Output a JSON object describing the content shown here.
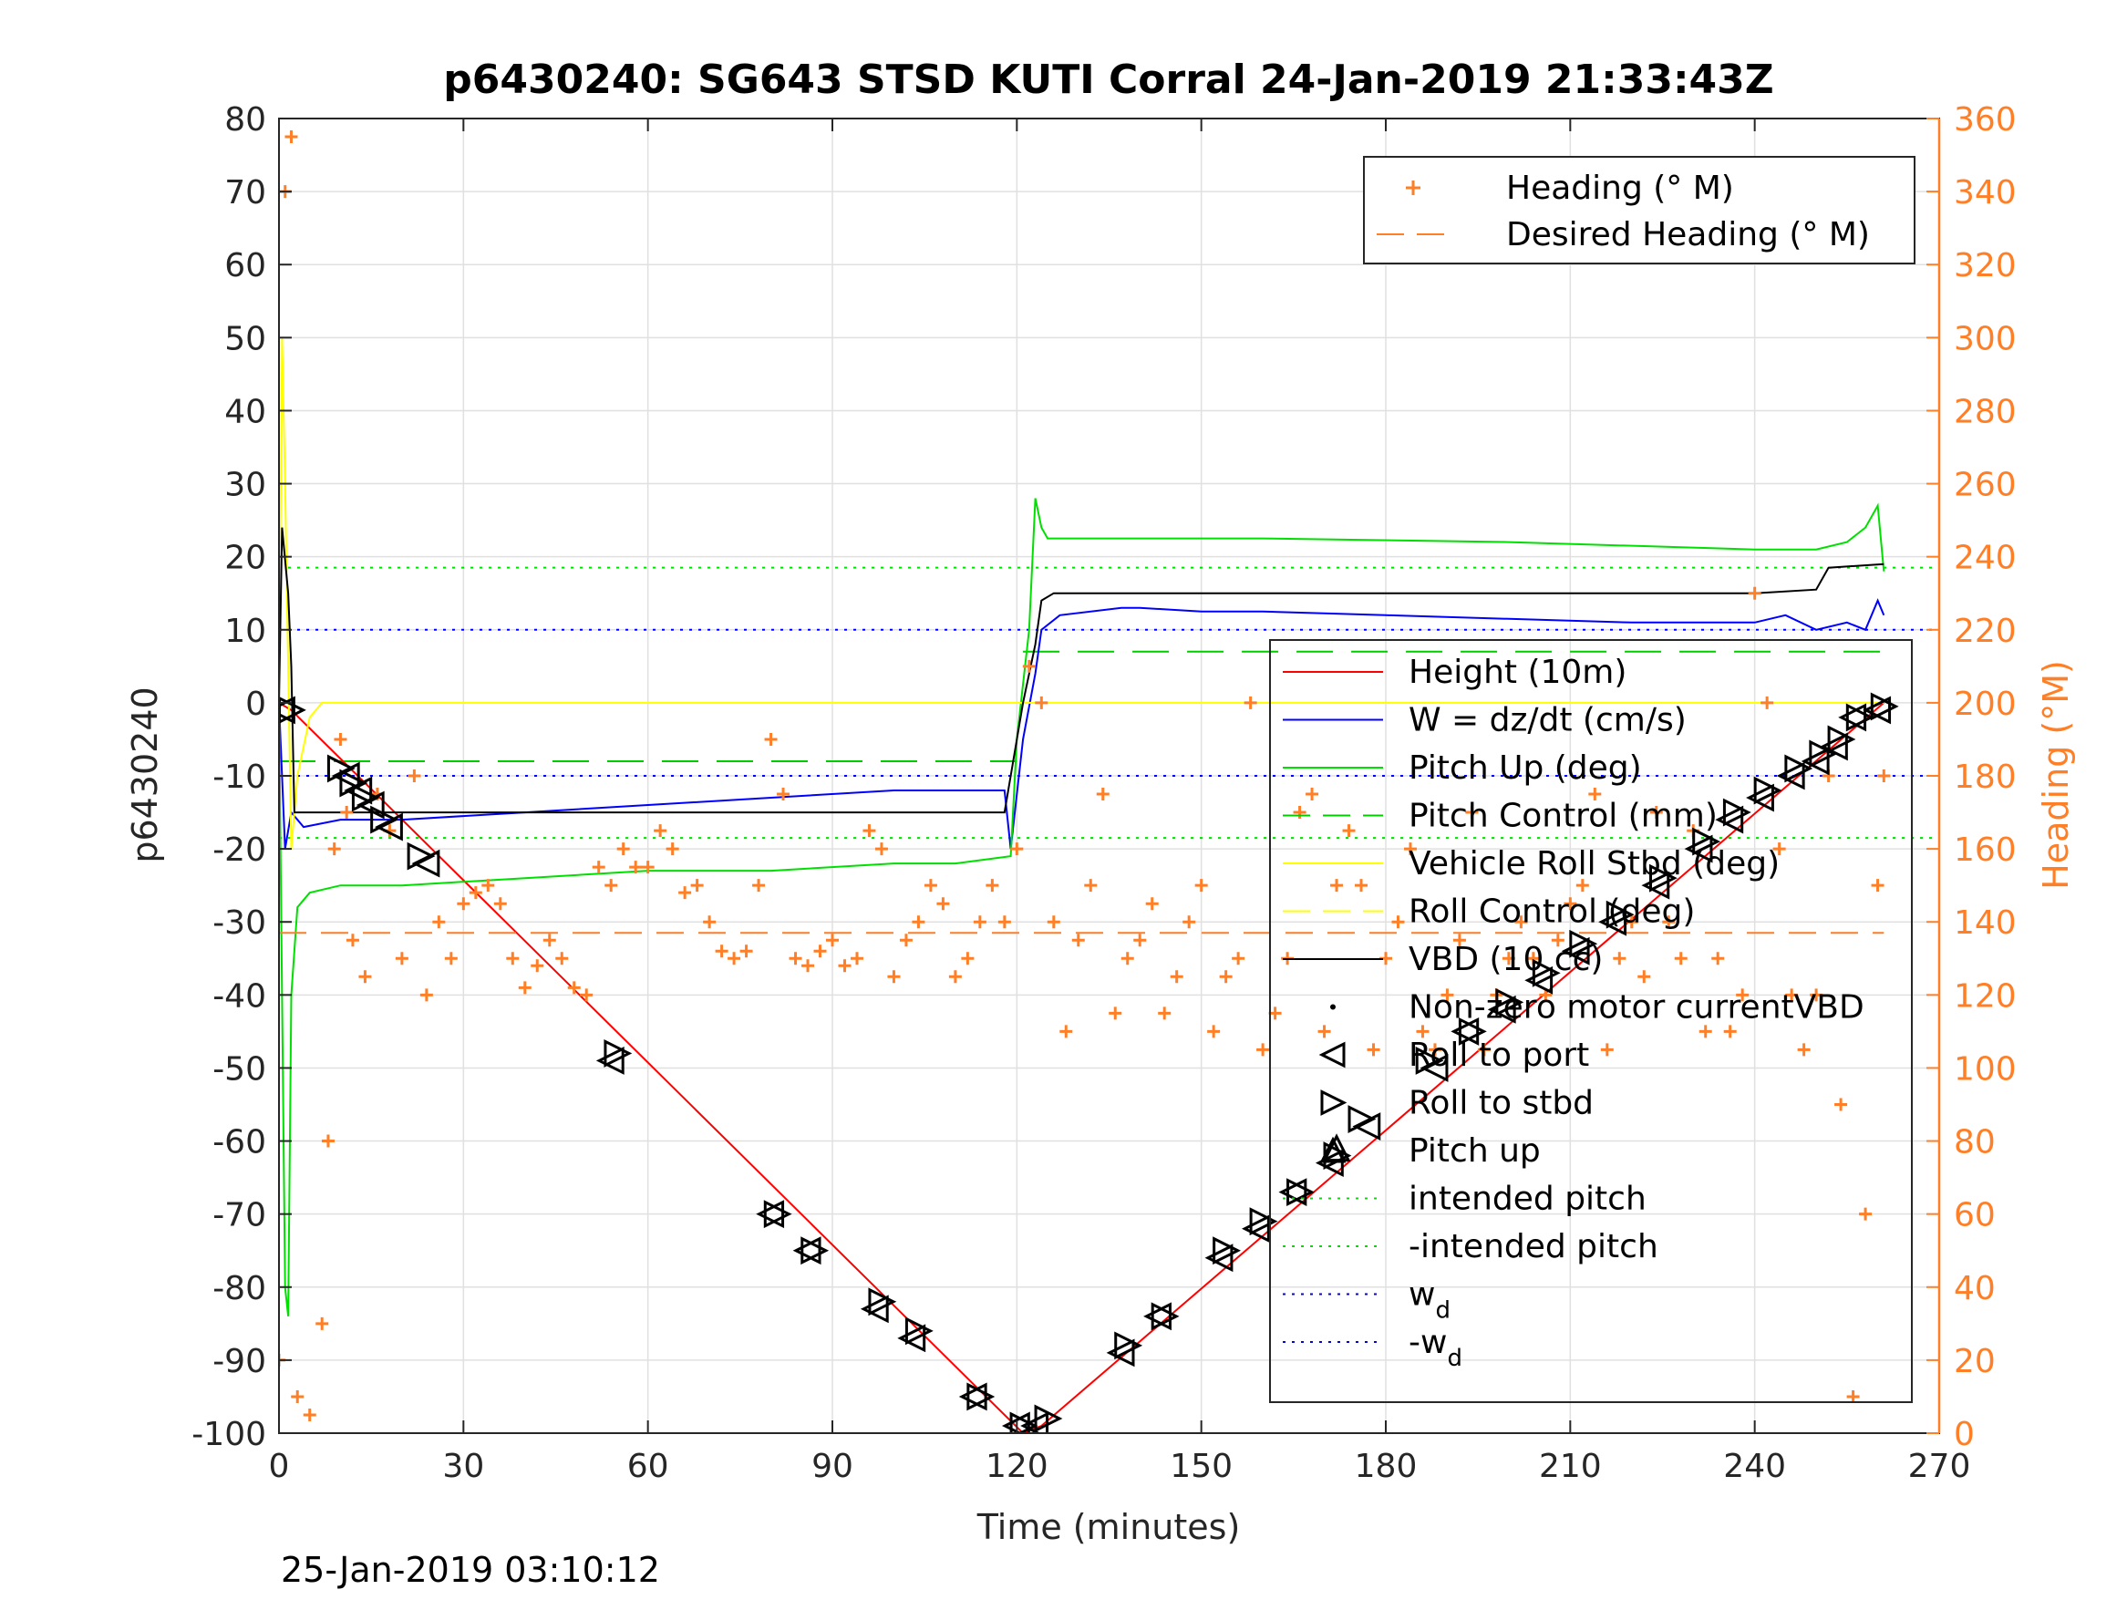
{
  "chart_data": {
    "type": "line",
    "title": "p6430240: SG643 STSD KUTI Corral 24-Jan-2019 21:33:43Z",
    "xlabel": "Time (minutes)",
    "ylabel_left": "p6430240",
    "ylabel_right": "Heading (°M)",
    "footer": "25-Jan-2019 03:10:12",
    "xlim": [
      0,
      270
    ],
    "xticks": [
      0,
      30,
      60,
      90,
      120,
      150,
      180,
      210,
      240,
      270
    ],
    "ylim_left": [
      -100,
      80
    ],
    "yticks_left": [
      80,
      70,
      60,
      50,
      40,
      30,
      20,
      10,
      0,
      -10,
      -20,
      -30,
      -40,
      -50,
      -60,
      -70,
      -80,
      -90,
      -100
    ],
    "ylim_right": [
      0,
      360
    ],
    "yticks_right": [
      360,
      340,
      320,
      300,
      280,
      260,
      240,
      220,
      200,
      180,
      160,
      140,
      120,
      100,
      80,
      60,
      40,
      20,
      0
    ],
    "grid": true,
    "colors": {
      "height": "#ff0000",
      "w": "#0000ff",
      "pitch": "#00e000",
      "pitch_control": "#00cc00",
      "roll": "#ffff00",
      "vbd": "#000000",
      "heading": "#ff7f27",
      "wd": "#0000ff",
      "right_axis": "#ff7f27"
    },
    "legend_top": {
      "placement": "top-right",
      "entries": [
        {
          "label": "Heading (° M)",
          "style": "plus",
          "color": "#ff7f27"
        },
        {
          "label": "Desired Heading (° M)",
          "style": "dash",
          "color": "#ff7f27"
        }
      ]
    },
    "legend_main": {
      "placement": "right",
      "entries": [
        {
          "label": "Height (10m)",
          "style": "line",
          "color": "#ff0000"
        },
        {
          "label": "W = dz/dt (cm/s)",
          "style": "line",
          "color": "#0000ff"
        },
        {
          "label": "Pitch Up (deg)",
          "style": "line",
          "color": "#00e000"
        },
        {
          "label": "Pitch Control (mm)",
          "style": "dash",
          "color": "#00cc00"
        },
        {
          "label": "Vehicle Roll Stbd (deg)",
          "style": "line",
          "color": "#ffff00"
        },
        {
          "label": "Roll Control (deg)",
          "style": "dash",
          "color": "#ffff00"
        },
        {
          "label": "VBD (10 cc)",
          "style": "line",
          "color": "#000000"
        },
        {
          "label": "Non-zero motor currentVBD",
          "style": "dot",
          "color": "#000000"
        },
        {
          "label": "Roll to port",
          "style": "tri-left",
          "color": "#000000"
        },
        {
          "label": "Roll to stbd",
          "style": "tri-right",
          "color": "#000000"
        },
        {
          "label": "Pitch up",
          "style": "tri-up",
          "color": "#000000"
        },
        {
          "label": "intended pitch",
          "style": "dotted",
          "color": "#00e000"
        },
        {
          "label": "-intended pitch",
          "style": "dotted",
          "color": "#00e000"
        },
        {
          "label": "w",
          "sub": "d",
          "style": "dotted",
          "color": "#0000ff"
        },
        {
          "label": "-w",
          "sub": "d",
          "style": "dotted",
          "color": "#0000ff"
        }
      ]
    },
    "series": [
      {
        "name": "Height (10m)",
        "axis": "left",
        "color": "#ff0000",
        "x": [
          0,
          2,
          121,
          124,
          261
        ],
        "y": [
          0,
          -1,
          -100,
          -99,
          0
        ]
      },
      {
        "name": "W = dz/dt (cm/s)",
        "axis": "left",
        "color": "#0000ff",
        "x": [
          0,
          1,
          2,
          4,
          10,
          20,
          40,
          60,
          80,
          100,
          118,
          119,
          121,
          123,
          124,
          127,
          137,
          140,
          150,
          160,
          180,
          200,
          220,
          240,
          245,
          250,
          255,
          258,
          260,
          261
        ],
        "y": [
          0,
          -20,
          -15,
          -17,
          -16,
          -16,
          -15,
          -14,
          -13,
          -12,
          -12,
          -20,
          -5,
          4,
          10,
          12,
          13,
          13,
          12.5,
          12.5,
          12,
          11.5,
          11,
          11,
          12,
          10,
          11,
          10,
          14,
          12
        ]
      },
      {
        "name": "Pitch Up (deg)",
        "axis": "left",
        "color": "#00e000",
        "x": [
          0,
          1,
          1.5,
          2,
          3,
          5,
          10,
          20,
          40,
          60,
          80,
          100,
          110,
          119,
          120,
          122,
          123,
          124,
          125,
          130,
          160,
          200,
          240,
          250,
          255,
          258,
          260,
          261
        ],
        "y": [
          0,
          -80,
          -84,
          -40,
          -28,
          -26,
          -25,
          -25,
          -24,
          -23,
          -23,
          -22,
          -22,
          -21,
          -5,
          10,
          28,
          24,
          22.5,
          22.5,
          22.5,
          22,
          21,
          21,
          22,
          24,
          27,
          18
        ]
      },
      {
        "name": "Vehicle Roll Stbd (deg)",
        "axis": "left",
        "color": "#ffff00",
        "x": [
          0,
          0.5,
          1,
          2,
          3,
          5,
          7,
          10,
          20,
          30,
          60,
          90,
          110,
          120,
          125,
          130,
          160,
          200,
          240,
          261
        ],
        "y": [
          0,
          50,
          30,
          -20,
          -10,
          -2,
          0,
          0,
          0,
          0,
          0,
          0,
          0,
          0,
          0,
          0,
          0,
          0,
          0,
          0
        ]
      },
      {
        "name": "VBD (10 cc)",
        "axis": "left",
        "color": "#000000",
        "x": [
          0,
          0.5,
          1.5,
          2,
          2.5,
          118,
          119,
          121,
          123,
          124,
          126,
          240,
          250,
          252,
          261
        ],
        "y": [
          0,
          24,
          15,
          5,
          -15,
          -15,
          -10,
          0,
          8,
          14,
          15,
          15,
          15.5,
          18.5,
          19
        ]
      },
      {
        "name": "Heading (° M)",
        "axis": "right",
        "color": "#ff7f27",
        "x": [
          0,
          1,
          2,
          3,
          5,
          7,
          8,
          9,
          10,
          11,
          12,
          14,
          16,
          18,
          20,
          22,
          24,
          26,
          28,
          30,
          32,
          34,
          36,
          38,
          40,
          42,
          44,
          46,
          48,
          50,
          52,
          54,
          56,
          58,
          60,
          62,
          64,
          66,
          68,
          70,
          72,
          74,
          76,
          78,
          80,
          82,
          84,
          86,
          88,
          90,
          92,
          94,
          96,
          98,
          100,
          102,
          104,
          106,
          108,
          110,
          112,
          114,
          116,
          118,
          120,
          122,
          124,
          126,
          128,
          130,
          132,
          134,
          136,
          138,
          140,
          142,
          144,
          146,
          148,
          150,
          152,
          154,
          156,
          158,
          160,
          162,
          164,
          166,
          168,
          170,
          172,
          174,
          176,
          178,
          180,
          182,
          184,
          186,
          188,
          190,
          192,
          194,
          196,
          198,
          200,
          202,
          204,
          206,
          208,
          210,
          212,
          214,
          216,
          218,
          220,
          222,
          224,
          226,
          228,
          230,
          232,
          234,
          236,
          238,
          240,
          242,
          244,
          246,
          248,
          250,
          252,
          254,
          256,
          258,
          260,
          261
        ],
        "y": [
          20,
          340,
          355,
          10,
          5,
          30,
          80,
          160,
          190,
          170,
          135,
          125,
          175,
          165,
          130,
          180,
          120,
          140,
          130,
          145,
          148,
          150,
          145,
          130,
          122,
          128,
          135,
          130,
          122,
          120,
          155,
          150,
          160,
          155,
          155,
          165,
          160,
          148,
          150,
          140,
          132,
          130,
          132,
          150,
          190,
          175,
          130,
          128,
          132,
          135,
          128,
          130,
          165,
          160,
          125,
          135,
          140,
          150,
          145,
          125,
          130,
          140,
          150,
          140,
          160,
          210,
          200,
          140,
          110,
          135,
          150,
          175,
          115,
          130,
          135,
          145,
          115,
          125,
          140,
          150,
          110,
          125,
          130,
          200,
          105,
          115,
          130,
          170,
          175,
          110,
          150,
          165,
          150,
          105,
          130,
          140,
          160,
          110,
          105,
          120,
          135,
          170,
          105,
          120,
          130,
          140,
          130,
          120,
          135,
          145,
          150,
          175,
          105,
          130,
          140,
          125,
          170,
          140,
          130,
          165,
          110,
          130,
          110,
          120,
          230,
          200,
          160,
          120,
          105,
          120,
          180,
          90,
          10,
          60,
          150,
          180
        ]
      },
      {
        "name": "Desired Heading (° M)",
        "axis": "right",
        "color": "#ff7f27",
        "style": "dash",
        "x": [
          0,
          261
        ],
        "y": [
          137,
          137
        ]
      }
    ],
    "reference_lines": [
      {
        "label": "intended pitch",
        "axis": "left",
        "y": 18.5,
        "color": "#00e000",
        "style": "dotted"
      },
      {
        "label": "-intended pitch",
        "axis": "left",
        "y": -18.5,
        "color": "#00e000",
        "style": "dotted"
      },
      {
        "label": "w_d",
        "axis": "left",
        "y": 10,
        "color": "#0000ff",
        "style": "dotted"
      },
      {
        "label": "-w_d",
        "axis": "left",
        "y": -10,
        "color": "#0000ff",
        "style": "dotted"
      }
    ],
    "pitch_control_segments": [
      {
        "x": [
          0,
          120
        ],
        "y": [
          -8,
          -8
        ]
      },
      {
        "x": [
          121,
          261
        ],
        "y": [
          7,
          7
        ]
      }
    ],
    "markers": {
      "roll_to_port": {
        "x": [
          0.5,
          11,
          13,
          15,
          18,
          24,
          54,
          80,
          86,
          97,
          103,
          113,
          120,
          123,
          137,
          143,
          153,
          159,
          165,
          171,
          177,
          188,
          193,
          199,
          205,
          211,
          217,
          224,
          231,
          236,
          241,
          246,
          250,
          253,
          256,
          260
        ],
        "y": [
          -1,
          -10,
          -12,
          -14,
          -17,
          -22,
          -49,
          -70,
          -75,
          -83,
          -87,
          -95,
          -99,
          -99,
          -89,
          -84,
          -76,
          -72,
          -67,
          -63,
          -58,
          -50,
          -45,
          -42,
          -38,
          -34,
          -30,
          -25,
          -20,
          -16,
          -13,
          -10,
          -8,
          -6,
          -2,
          -1
        ]
      },
      "roll_to_stbd": {
        "x": [
          2,
          10,
          12,
          14,
          17,
          23,
          55,
          81,
          87,
          98,
          104,
          114,
          121,
          125,
          138,
          144,
          154,
          160,
          166,
          172,
          176,
          187,
          194,
          200,
          206,
          212,
          218,
          225,
          232,
          237,
          242,
          247,
          251,
          254,
          257,
          261
        ],
        "y": [
          -1,
          -9,
          -11,
          -13,
          -16,
          -21,
          -48,
          -70,
          -75,
          -82,
          -86,
          -95,
          -99,
          -98,
          -88,
          -84,
          -75,
          -71,
          -67,
          -62,
          -57,
          -49,
          -45,
          -41,
          -37,
          -33,
          -29,
          -24,
          -19,
          -15,
          -12,
          -9,
          -7,
          -5,
          -2,
          -0.5
        ]
      },
      "pitch_up": {
        "x": [
          172
        ],
        "y": [
          -61
        ]
      }
    }
  }
}
